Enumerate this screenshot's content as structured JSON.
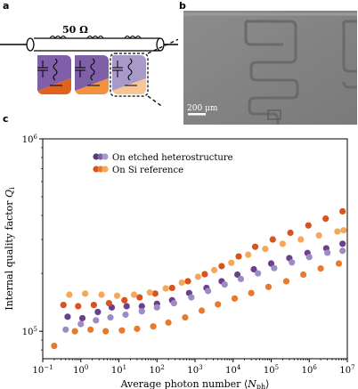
{
  "panels": {
    "a": {
      "letter": "a",
      "resistor_label": "50 Ω",
      "colors": {
        "purple": "#7e5fa8",
        "purple_light": "#a79ac8",
        "orange_dark": "#e0621e",
        "orange": "#f29140",
        "orange_light": "#f8c594"
      }
    },
    "b": {
      "letter": "b",
      "scalebar_label": "200 μm",
      "image_description_icon": "micrograph-of-meander-resonator"
    },
    "c": {
      "letter": "c"
    }
  },
  "chart_data": {
    "type": "scatter",
    "xlabel": "Average photon number ⟨N_ph⟩",
    "ylabel": "Internal quality factor Q_i",
    "xscale": "log",
    "yscale": "log",
    "xlim": [
      0.1,
      10000000
    ],
    "ylim": [
      72000,
      1000000
    ],
    "x_ticks": [
      "10^-1",
      "10^0",
      "10^1",
      "10^2",
      "10^3",
      "10^4",
      "10^5",
      "10^6",
      "10^7"
    ],
    "y_ticks": [
      "10^5",
      "10^6"
    ],
    "legend": {
      "placement": "top-left",
      "entries": [
        "On etched heterostructure",
        "On Si reference"
      ]
    },
    "series": [
      {
        "name": "On etched heterostructure",
        "shade": "dark",
        "color": "#6b3f8e",
        "points": [
          [
            0.45,
            119000
          ],
          [
            1.1,
            117000
          ],
          [
            2.8,
            126000
          ],
          [
            6.5,
            133000
          ],
          [
            16,
            135000
          ],
          [
            40,
            135000
          ],
          [
            100,
            139000
          ],
          [
            250,
            145000
          ],
          [
            700,
            158000
          ],
          [
            2000,
            168000
          ],
          [
            5000,
            182000
          ],
          [
            13000,
            197000
          ],
          [
            35000,
            210000
          ],
          [
            100000,
            225000
          ],
          [
            300000,
            240000
          ],
          [
            900000,
            255000
          ],
          [
            2800000,
            270000
          ],
          [
            7500000,
            285000
          ]
        ]
      },
      {
        "name": "On etched heterostructure",
        "shade": "light",
        "color": "#9c8cc4",
        "points": [
          [
            0.4,
            102000
          ],
          [
            1,
            109000
          ],
          [
            2.5,
            114000
          ],
          [
            6,
            118000
          ],
          [
            15,
            122000
          ],
          [
            40,
            127000
          ],
          [
            100,
            133000
          ],
          [
            280,
            140000
          ],
          [
            800,
            150000
          ],
          [
            2200,
            162000
          ],
          [
            6000,
            175000
          ],
          [
            16000,
            187000
          ],
          [
            45000,
            200000
          ],
          [
            120000,
            213000
          ],
          [
            350000,
            228000
          ],
          [
            1000000,
            243000
          ],
          [
            3000000,
            256000
          ],
          [
            7500000,
            262000
          ]
        ]
      },
      {
        "name": "On Si reference",
        "shade": "dark",
        "color": "#d9531c",
        "points": [
          [
            0.35,
            137000
          ],
          [
            0.85,
            135000
          ],
          [
            2.2,
            137000
          ],
          [
            5.5,
            140000
          ],
          [
            14,
            145000
          ],
          [
            35,
            150000
          ],
          [
            90,
            157000
          ],
          [
            250,
            168000
          ],
          [
            650,
            182000
          ],
          [
            1800,
            198000
          ],
          [
            5000,
            218000
          ],
          [
            14000,
            245000
          ],
          [
            38000,
            275000
          ],
          [
            110000,
            300000
          ],
          [
            320000,
            325000
          ],
          [
            950000,
            355000
          ],
          [
            2700000,
            385000
          ],
          [
            7500000,
            420000
          ]
        ]
      },
      {
        "name": "On Si reference",
        "shade": "light",
        "color": "#f5a85a",
        "points": [
          [
            0.5,
            155000
          ],
          [
            1.3,
            157000
          ],
          [
            3.5,
            155000
          ],
          [
            9,
            153000
          ],
          [
            25,
            155000
          ],
          [
            65,
            159000
          ],
          [
            170,
            167000
          ],
          [
            450,
            179000
          ],
          [
            1200,
            192000
          ],
          [
            3200,
            208000
          ],
          [
            9000,
            227000
          ],
          [
            25000,
            250000
          ],
          [
            70000,
            268000
          ],
          [
            200000,
            285000
          ],
          [
            600000,
            300000
          ],
          [
            1800000,
            315000
          ],
          [
            5500000,
            330000
          ],
          [
            8000000,
            335000
          ]
        ]
      },
      {
        "name": "On Si reference",
        "shade": "medium",
        "color": "#ea7a2b",
        "points": [
          [
            0.2,
            84000
          ],
          [
            0.7,
            100000
          ],
          [
            1.8,
            102000
          ],
          [
            4.5,
            100000
          ],
          [
            12,
            101000
          ],
          [
            30,
            103000
          ],
          [
            80,
            106000
          ],
          [
            200,
            111000
          ],
          [
            550,
            118000
          ],
          [
            1500,
            128000
          ],
          [
            4000,
            138000
          ],
          [
            11000,
            148000
          ],
          [
            30000,
            158000
          ],
          [
            85000,
            170000
          ],
          [
            250000,
            182000
          ],
          [
            700000,
            197000
          ],
          [
            2000000,
            212000
          ],
          [
            6000000,
            225000
          ]
        ]
      }
    ],
    "legend_swatches": {
      "etched": [
        "#5a3784",
        "#7e5fa8",
        "#a79ac8"
      ],
      "si": [
        "#d9531c",
        "#ea7a2b",
        "#f5a85a"
      ]
    }
  }
}
